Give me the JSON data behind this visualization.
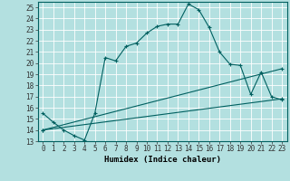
{
  "xlabel": "Humidex (Indice chaleur)",
  "xlim": [
    -0.5,
    23.5
  ],
  "ylim": [
    13,
    25.5
  ],
  "yticks": [
    13,
    14,
    15,
    16,
    17,
    18,
    19,
    20,
    21,
    22,
    23,
    24,
    25
  ],
  "xticks": [
    0,
    1,
    2,
    3,
    4,
    5,
    6,
    7,
    8,
    9,
    10,
    11,
    12,
    13,
    14,
    15,
    16,
    17,
    18,
    19,
    20,
    21,
    22,
    23
  ],
  "bg_color": "#b3e0e0",
  "grid_color": "#ffffff",
  "line_color": "#006060",
  "line1_x": [
    0,
    1,
    2,
    3,
    4,
    5,
    6,
    7,
    8,
    9,
    10,
    11,
    12,
    13,
    14,
    15,
    16,
    17,
    18,
    19,
    20,
    21,
    22,
    23
  ],
  "line1_y": [
    15.5,
    14.7,
    14.0,
    13.5,
    13.1,
    15.5,
    20.5,
    20.2,
    21.5,
    21.8,
    22.7,
    23.3,
    23.5,
    23.5,
    25.3,
    24.8,
    23.2,
    21.0,
    19.9,
    19.8,
    17.2,
    19.2,
    17.0,
    16.7
  ],
  "line2_x": [
    0,
    23
  ],
  "line2_y": [
    14.0,
    19.5
  ],
  "line3_x": [
    0,
    23
  ],
  "line3_y": [
    14.0,
    16.8
  ]
}
